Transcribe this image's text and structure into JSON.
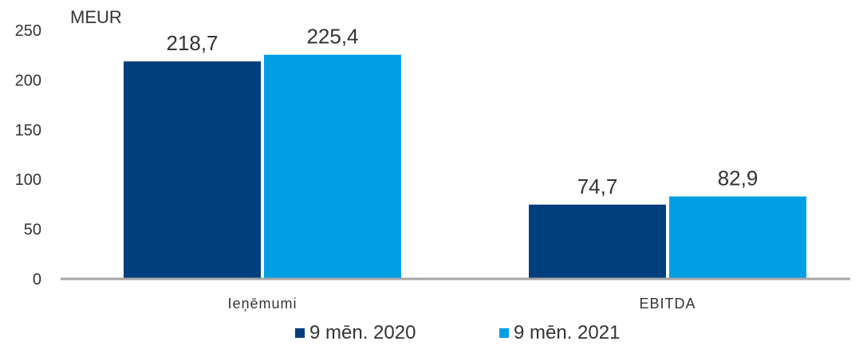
{
  "chart_data": {
    "type": "bar",
    "unit_label": "MEUR",
    "categories": [
      "Ieņēmumi",
      "EBITDA"
    ],
    "series": [
      {
        "name": "9 mēn. 2020",
        "values": [
          218.7,
          74.7
        ],
        "labels": [
          "218,7",
          "74,7"
        ],
        "color": "#003f7d"
      },
      {
        "name": "9 mēn. 2021",
        "values": [
          225.4,
          82.9
        ],
        "labels": [
          "225,4",
          "82,9"
        ],
        "color": "#009fe3"
      }
    ],
    "ylim": [
      0,
      250
    ],
    "yticks": [
      0,
      50,
      100,
      150,
      200,
      250
    ],
    "grid": false,
    "legend_position": "bottom"
  }
}
